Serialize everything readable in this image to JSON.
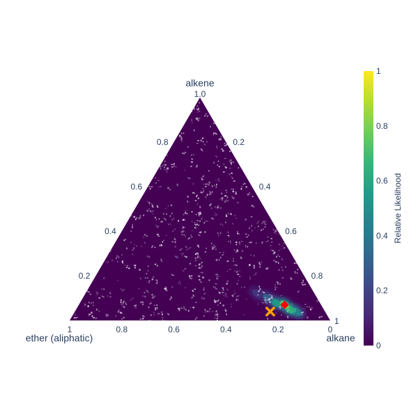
{
  "chart_data": {
    "type": "ternary_heatmap",
    "axes": {
      "a": {
        "title": "alkene",
        "ticks": [
          "0.2",
          "0.4",
          "0.6",
          "0.8",
          "1.0"
        ]
      },
      "b": {
        "title": "ether (aliphatic)",
        "ticks": [
          "0",
          "0.2",
          "0.4",
          "0.6",
          "0.8",
          "1"
        ]
      },
      "c": {
        "title": "alkane",
        "ticks": [
          "0.2",
          "0.4",
          "0.6",
          "0.8",
          "1"
        ]
      }
    },
    "colorbar": {
      "title": "Relative Likelihood",
      "ticks": [
        "0",
        "0.2",
        "0.4",
        "0.6",
        "0.8",
        "1"
      ],
      "range": [
        0,
        1
      ],
      "colorscale": "viridis"
    },
    "markers": [
      {
        "label": "red-diamond",
        "symbol": "diamond",
        "color": "#ff0000",
        "a": 0.07,
        "b": 0.14,
        "c": 0.79
      },
      {
        "label": "orange-x",
        "symbol": "x",
        "color": "#ffa500",
        "a": 0.04,
        "b": 0.21,
        "c": 0.75
      }
    ],
    "high_likelihood_region": [
      {
        "a": 0.04,
        "b": 0.11,
        "c": 0.85,
        "value": 0.45
      },
      {
        "a": 0.05,
        "b": 0.13,
        "c": 0.82,
        "value": 0.65
      },
      {
        "a": 0.07,
        "b": 0.14,
        "c": 0.79,
        "value": 0.75
      },
      {
        "a": 0.08,
        "b": 0.17,
        "c": 0.75,
        "value": 0.55
      },
      {
        "a": 0.1,
        "b": 0.19,
        "c": 0.71,
        "value": 0.3
      },
      {
        "a": 0.12,
        "b": 0.22,
        "c": 0.66,
        "value": 0.15
      }
    ]
  }
}
